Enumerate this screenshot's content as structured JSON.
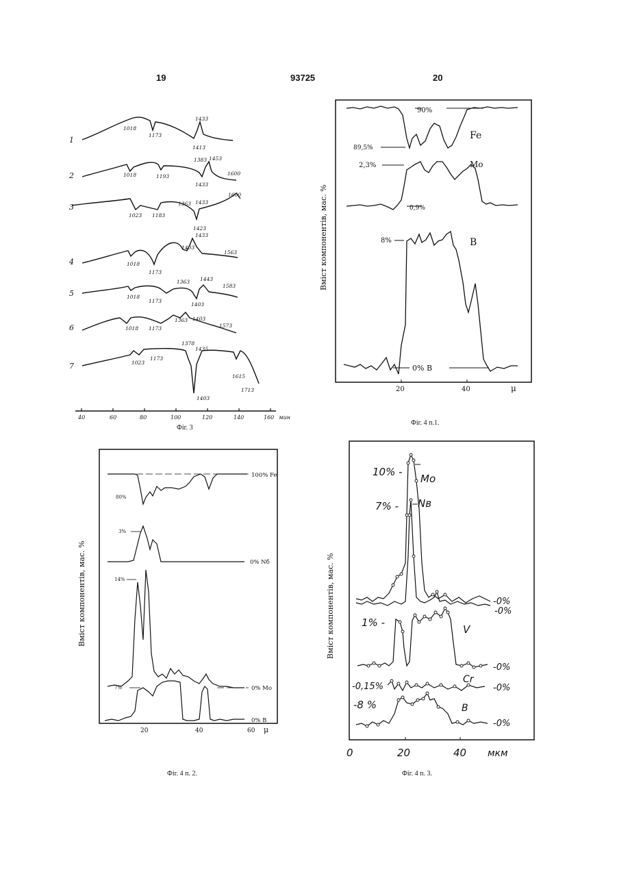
{
  "header": {
    "left_page": "19",
    "patent_number": "93725",
    "right_page": "20"
  },
  "fig3": {
    "caption": "Фіг. 3",
    "x_unit": "мин",
    "x_ticks": [
      "40",
      "60",
      "80",
      "100",
      "120",
      "140",
      "160"
    ],
    "curves": [
      {
        "num": "1",
        "labels": [
          "1018",
          "1173",
          "1433",
          "1413"
        ]
      },
      {
        "num": "2",
        "labels": [
          "1018",
          "1193",
          "1383",
          "1453",
          "1433",
          "1600"
        ]
      },
      {
        "num": "3",
        "labels": [
          "1023",
          "1183",
          "1363",
          "1433",
          "1600",
          "1423"
        ]
      },
      {
        "num": "4",
        "labels": [
          "1018",
          "1173",
          "1403",
          "1433",
          "1563"
        ]
      },
      {
        "num": "5",
        "labels": [
          "1018",
          "1173",
          "1363",
          "1443",
          "1583",
          "1403"
        ]
      },
      {
        "num": "6",
        "labels": [
          "1018",
          "1173",
          "1363",
          "1403",
          "1573"
        ]
      },
      {
        "num": "7",
        "labels": [
          "1023",
          "1173",
          "1378",
          "1435",
          "1615",
          "1713",
          "1403"
        ]
      }
    ]
  },
  "fig4p1": {
    "caption": "Фіг. 4 п.1.",
    "ylabel": "Вміст компонентів, мас. %",
    "x_ticks": [
      "20",
      "40"
    ],
    "x_unit": "μ",
    "labels": {
      "fe_top": "90%",
      "fe_low": "89,5%",
      "fe": "Fe",
      "mo_high": "2,3%",
      "mo": "Mo",
      "mo_low": "0,9%",
      "b_high": "8%",
      "b": "B",
      "b_low": "0% B"
    }
  },
  "fig4p2": {
    "caption": "Фіг. 4 п. 2.",
    "ylabel": "Вміст компонентів, мас. %",
    "x_ticks": [
      "20",
      "40",
      "60"
    ],
    "x_unit": "μ",
    "labels": {
      "fe_top": "100% Fe",
      "fe_low": "80%",
      "nb_high": "3%",
      "nb_low": "0% Nб",
      "mo_high": "14%",
      "mo_low": "0% Mo",
      "b_high": "7%",
      "b_low": "0% B"
    }
  },
  "fig4p3": {
    "caption": "Фіг. 4 п. 3.",
    "ylabel": "Вміст компонентів, мас. %",
    "x_ticks": [
      "0",
      "20",
      "40"
    ],
    "x_unit": "мкм",
    "labels": {
      "mo_high": "10% -",
      "mo": "Mo",
      "nb_high": "7% -",
      "nb": "Nв",
      "zero1": "-0%",
      "zero2": "-0%",
      "v_high": "1% -",
      "v": "V",
      "v_low": "-0%",
      "cr_high": "-0,15%",
      "cr": "Cr",
      "cr_low": "-0%",
      "b_high": "-8 %",
      "b": "B",
      "b_low": "-0%"
    }
  }
}
